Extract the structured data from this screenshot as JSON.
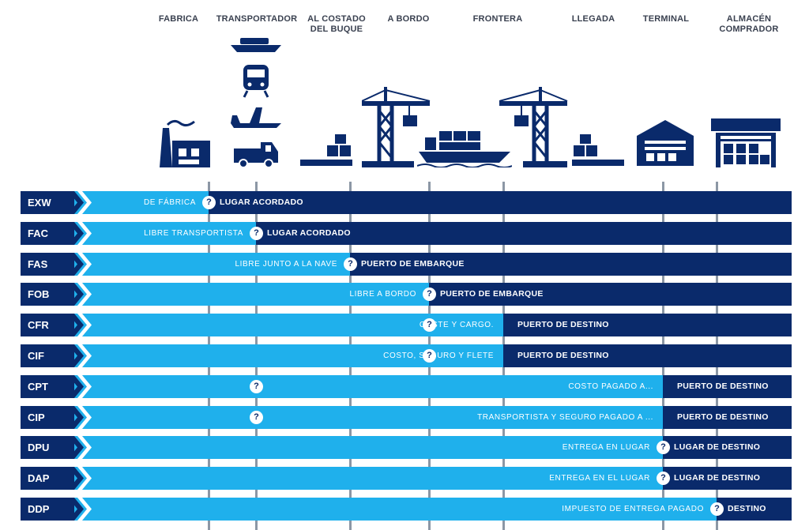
{
  "columns": [
    {
      "label": "FABRICA"
    },
    {
      "label": "TRANSPORTADOR"
    },
    {
      "label": "AL COSTADO\nDEL BUQUE"
    },
    {
      "label": "A BORDO"
    },
    {
      "label": "FRONTERA"
    },
    {
      "label": "LLEGADA"
    },
    {
      "label": "TERMINAL"
    },
    {
      "label": "ALMACÉN\nCOMPRADOR"
    }
  ],
  "icons": [
    "factory-icon",
    "ship-icon",
    "train-icon",
    "airplane-icon",
    "truck-icon",
    "pallet-icon",
    "port-crane-icon",
    "cargo-ship-icon",
    "port-crane-icon",
    "pallet-icon",
    "terminal-warehouse-icon",
    "buyer-warehouse-icon"
  ],
  "question_mark": "?",
  "colors": {
    "light": "#1fb0ec",
    "dark": "#0a2a6b",
    "line": "#8c97a5"
  },
  "rows": [
    {
      "code": "EXW",
      "seller_text": "DE FÁBRICA",
      "buyer_text": "LUGAR ACORDADO",
      "seller_until": 1,
      "question_at": 1
    },
    {
      "code": "FAC",
      "seller_text": "LIBRE TRANSPORTISTA",
      "buyer_text": "LUGAR ACORDADO",
      "seller_until": 2,
      "question_at": 2
    },
    {
      "code": "FAS",
      "seller_text": "LIBRE JUNTO A LA NAVE",
      "buyer_text": "PUERTO DE EMBARQUE",
      "seller_until": 3,
      "question_at": 3
    },
    {
      "code": "FOB",
      "seller_text": "LIBRE A BORDO",
      "buyer_text": "PUERTO DE EMBARQUE",
      "seller_until": 4,
      "question_at": 4
    },
    {
      "code": "CFR",
      "seller_text": "COSTE Y CARGO.",
      "buyer_text": "PUERTO DE DESTINO",
      "seller_until": 5,
      "question_at": 4
    },
    {
      "code": "CIF",
      "seller_text": "COSTO, SEGURO Y FLETE",
      "buyer_text": "PUERTO DE DESTINO",
      "seller_until": 5,
      "question_at": 4
    },
    {
      "code": "CPT",
      "seller_text": "COSTO PAGADO A...",
      "buyer_text": "PUERTO DE DESTINO",
      "seller_until": 7,
      "question_at": 2
    },
    {
      "code": "CIP",
      "seller_text": "TRANSPORTISTA Y SEGURO PAGADO A ...",
      "buyer_text": "PUERTO DE DESTINO",
      "seller_until": 7,
      "question_at": 2
    },
    {
      "code": "DPU",
      "seller_text": "ENTREGA EN LUGAR",
      "buyer_text": "LUGAR DE DESTINO",
      "seller_until": 7,
      "question_at": 7
    },
    {
      "code": "DAP",
      "seller_text": "ENTREGA EN EL LUGAR",
      "buyer_text": "LUGAR DE DESTINO",
      "seller_until": 7,
      "question_at": 7
    },
    {
      "code": "DDP",
      "seller_text": "IMPUESTO DE ENTREGA PAGADO",
      "buyer_text": "DESTINO",
      "seller_until": 8,
      "question_at": 8
    }
  ]
}
